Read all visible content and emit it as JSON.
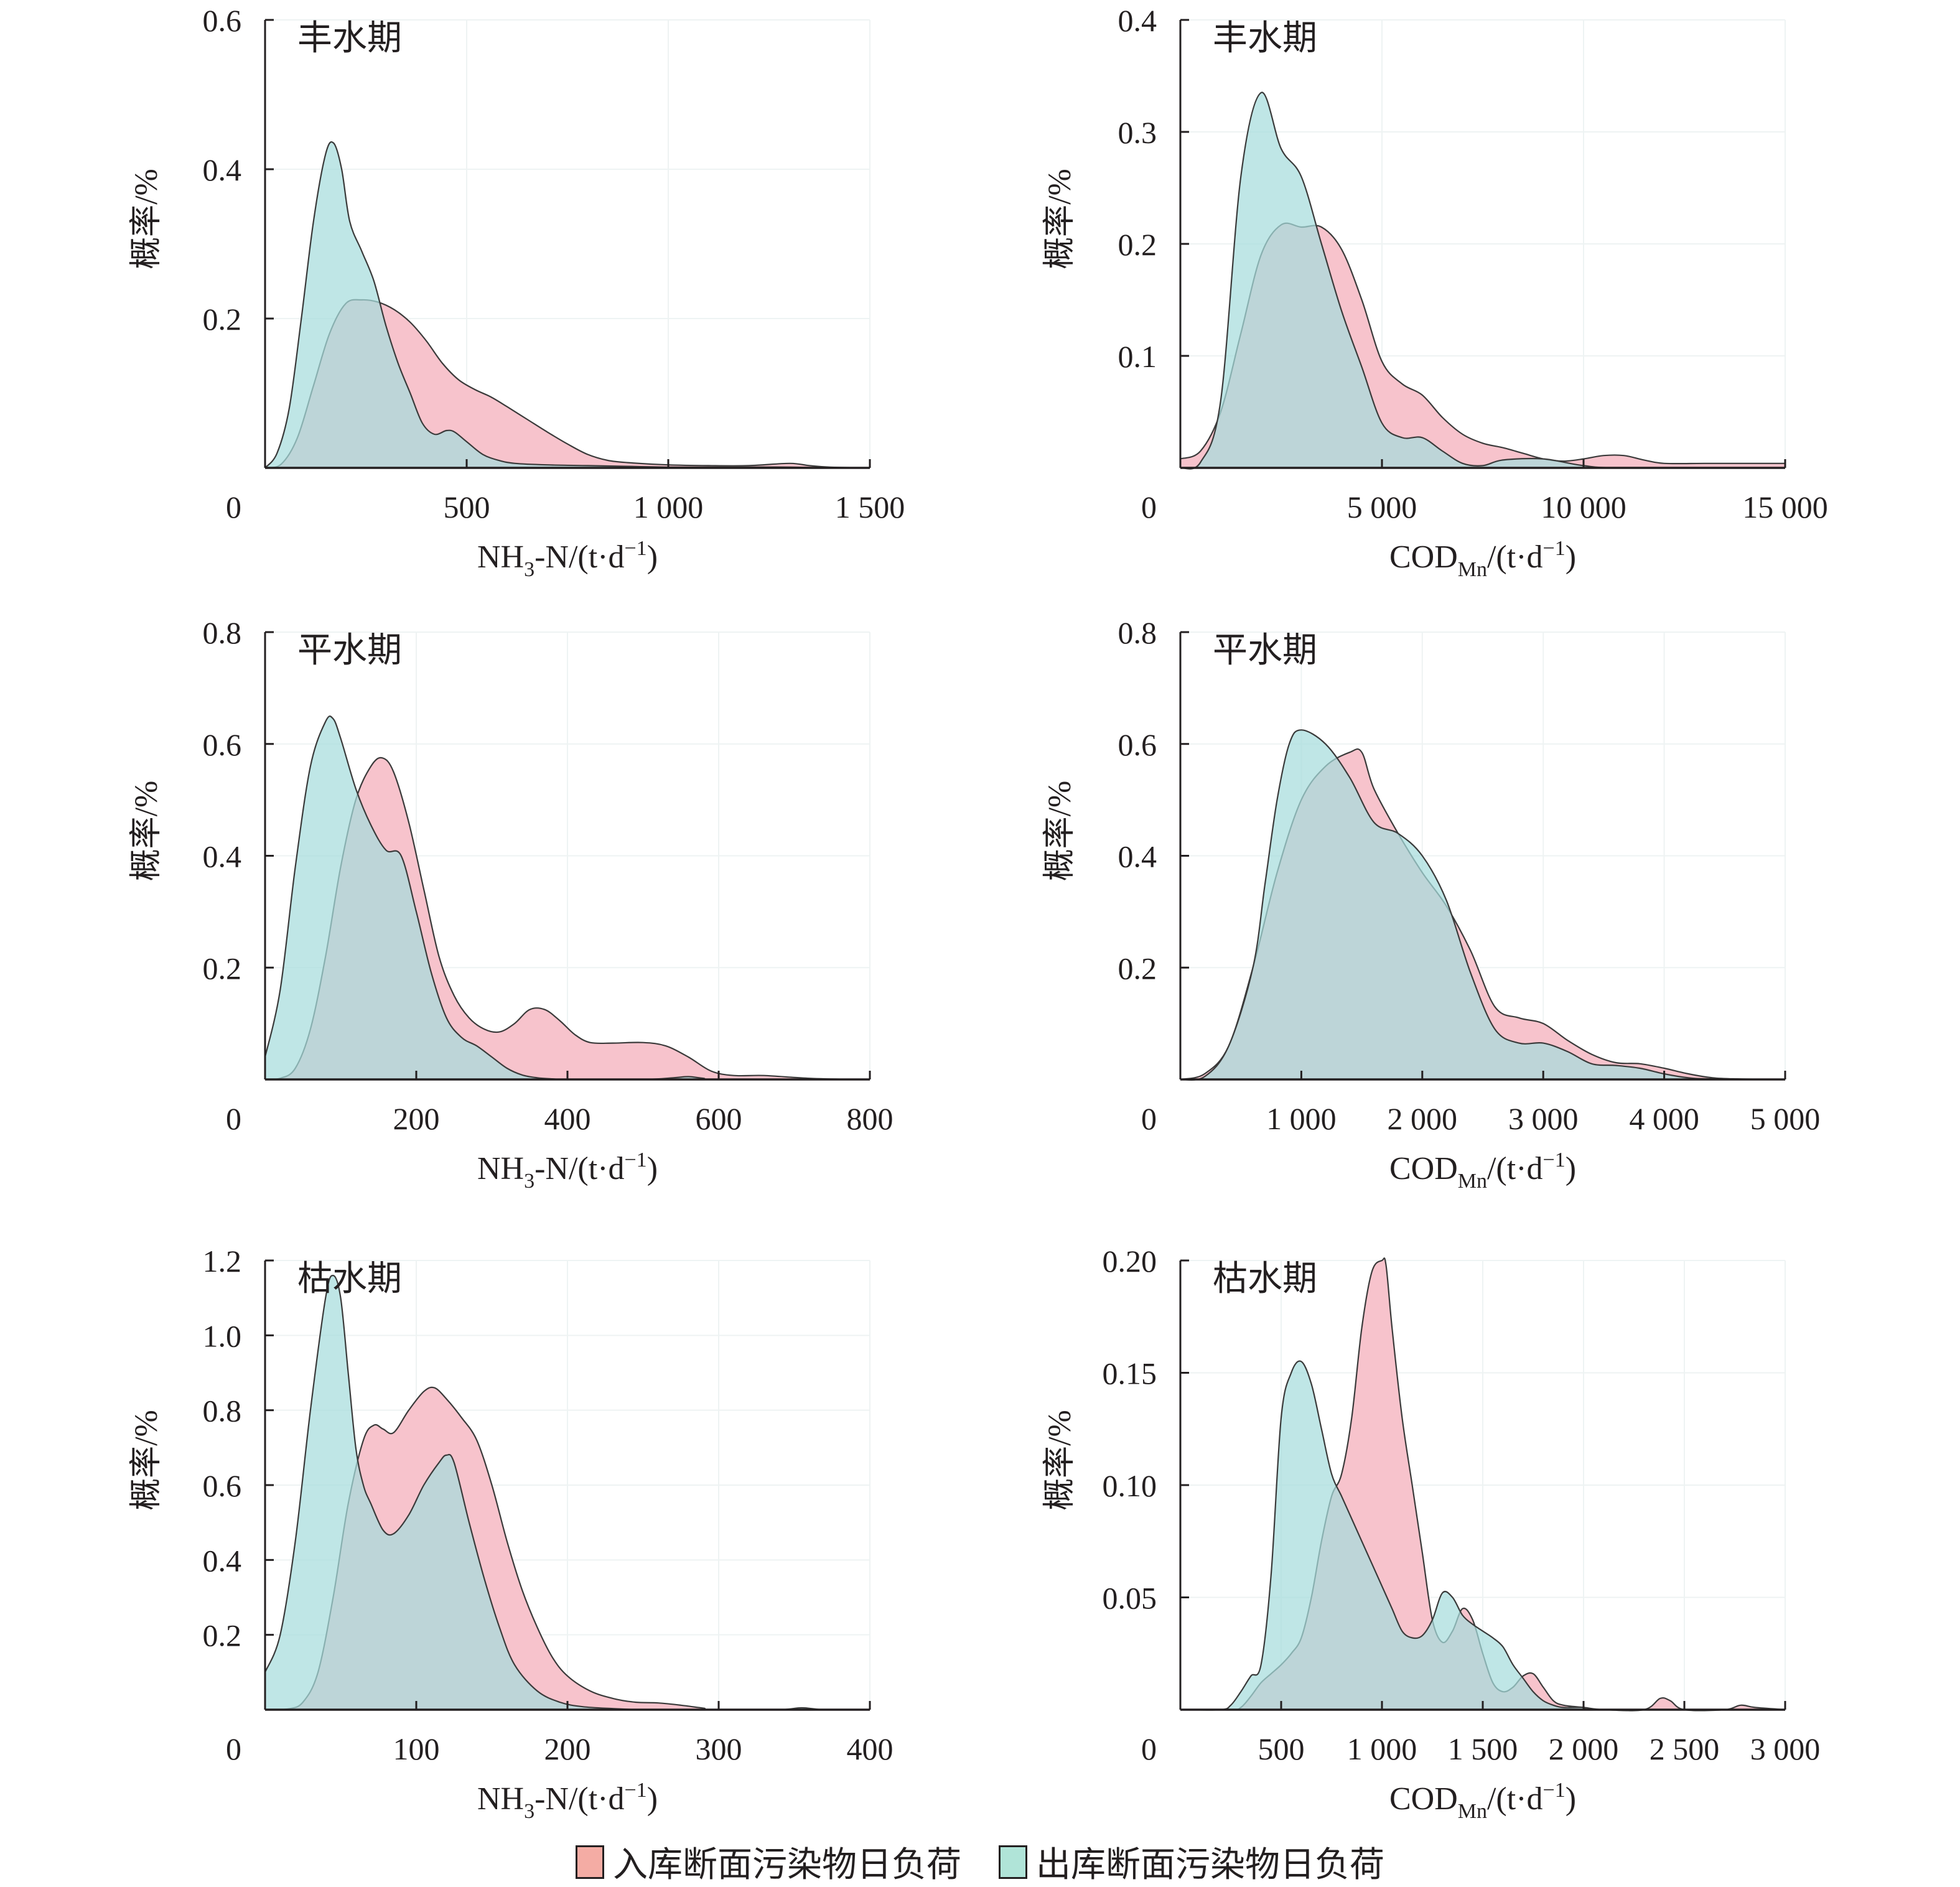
{
  "colors": {
    "inflow_fill": "#f7c3cc",
    "outflow_fill": "#a6dcdc",
    "inflow_swatch": "#f4aca4",
    "outflow_swatch": "#b0e4d8",
    "line": "#3a3a3a",
    "axis": "#231f20"
  },
  "legend": [
    {
      "label": "入库断面污染物日负荷",
      "key": "inflow"
    },
    {
      "label": "出库断面污染物日负荷",
      "key": "outflow"
    }
  ],
  "chart_data": [
    {
      "type": "area",
      "id": "nh3-wet",
      "period": "丰水期",
      "xlabel": "NH3-N/(t·d-1)",
      "xlabel_main": "NH",
      "xlabel_sub": "3",
      "xlabel_rest": "-N/(t·d",
      "xlabel_sup": "−1",
      "xlabel_end": ")",
      "ylabel": "概率/%",
      "xlim": [
        0,
        1500
      ],
      "ylim": [
        0,
        0.6
      ],
      "xticks": [
        0,
        500,
        1000,
        1500
      ],
      "xtick_labels": [
        "0",
        "500",
        "1 000",
        "1 500"
      ],
      "yticks": [
        0.2,
        0.4,
        0.6
      ],
      "ytick_labels": [
        "0.2",
        "0.4",
        "0.6"
      ],
      "series": [
        {
          "name": "入库断面污染物日负荷",
          "key": "inflow",
          "x": [
            0,
            40,
            80,
            120,
            160,
            200,
            240,
            280,
            320,
            360,
            400,
            440,
            480,
            520,
            560,
            600,
            650,
            700,
            750,
            800,
            850,
            900,
            1000,
            1100,
            1200,
            1300,
            1350,
            1400,
            1500
          ],
          "y": [
            0,
            0.005,
            0.04,
            0.11,
            0.18,
            0.22,
            0.225,
            0.222,
            0.212,
            0.195,
            0.17,
            0.14,
            0.118,
            0.105,
            0.095,
            0.082,
            0.065,
            0.048,
            0.032,
            0.018,
            0.01,
            0.007,
            0.004,
            0.003,
            0.003,
            0.006,
            0.003,
            0.001,
            0
          ]
        },
        {
          "name": "出库断面污染物日负荷",
          "key": "outflow",
          "x": [
            0,
            30,
            60,
            90,
            120,
            150,
            170,
            190,
            210,
            240,
            270,
            300,
            330,
            360,
            390,
            420,
            450,
            470,
            500,
            540,
            580,
            620,
            700,
            800,
            900,
            1000,
            1100,
            1200,
            1300,
            1400,
            1500
          ],
          "y": [
            0,
            0.02,
            0.08,
            0.2,
            0.33,
            0.42,
            0.435,
            0.4,
            0.33,
            0.29,
            0.25,
            0.19,
            0.14,
            0.1,
            0.06,
            0.045,
            0.05,
            0.048,
            0.035,
            0.018,
            0.01,
            0.006,
            0.004,
            0.003,
            0.002,
            0.001,
            0.001,
            0.001,
            0.001,
            0,
            0
          ]
        }
      ]
    },
    {
      "type": "area",
      "id": "cod-wet",
      "period": "丰水期",
      "xlabel": "CODMn/(t·d-1)",
      "xlabel_main": "COD",
      "xlabel_sub": "Mn",
      "xlabel_rest": "/(t·d",
      "xlabel_sup": "−1",
      "xlabel_end": ")",
      "ylabel": "概率/%",
      "xlim": [
        0,
        15000
      ],
      "ylim": [
        0,
        0.4
      ],
      "xticks": [
        0,
        5000,
        10000,
        15000
      ],
      "xtick_labels": [
        "0",
        "5 000",
        "10 000",
        "15 000"
      ],
      "yticks": [
        0.1,
        0.2,
        0.3,
        0.4
      ],
      "ytick_labels": [
        "0.1",
        "0.2",
        "0.3",
        "0.4"
      ],
      "series": [
        {
          "name": "入库断面污染物日负荷",
          "key": "inflow",
          "x": [
            0,
            500,
            1000,
            1500,
            2000,
            2500,
            3000,
            3500,
            4000,
            4500,
            5000,
            5500,
            6000,
            6500,
            7000,
            7500,
            8000,
            8500,
            9000,
            9500,
            10000,
            10500,
            11000,
            11500,
            12000,
            13000,
            14000,
            15000
          ],
          "y": [
            0.008,
            0.015,
            0.05,
            0.12,
            0.19,
            0.217,
            0.215,
            0.215,
            0.195,
            0.15,
            0.095,
            0.075,
            0.065,
            0.045,
            0.03,
            0.022,
            0.018,
            0.013,
            0.008,
            0.006,
            0.008,
            0.011,
            0.011,
            0.007,
            0.004,
            0.004,
            0.004,
            0.004
          ]
        },
        {
          "name": "出库断面污染物日负荷",
          "key": "outflow",
          "x": [
            0,
            500,
            1000,
            1500,
            2000,
            2500,
            3000,
            3500,
            4000,
            4500,
            5000,
            5500,
            6000,
            6500,
            7000,
            7500,
            8000,
            9000,
            10000,
            11000,
            15000
          ],
          "y": [
            0,
            0.005,
            0.06,
            0.26,
            0.335,
            0.285,
            0.26,
            0.2,
            0.14,
            0.09,
            0.04,
            0.027,
            0.027,
            0.015,
            0.004,
            0.002,
            0.007,
            0.008,
            0.002,
            0,
            0
          ]
        }
      ]
    },
    {
      "type": "area",
      "id": "nh3-normal",
      "period": "平水期",
      "xlabel": "NH3-N/(t·d-1)",
      "xlabel_main": "NH",
      "xlabel_sub": "3",
      "xlabel_rest": "-N/(t·d",
      "xlabel_sup": "−1",
      "xlabel_end": ")",
      "ylabel": "概率/%",
      "xlim": [
        0,
        800
      ],
      "ylim": [
        0,
        0.8
      ],
      "xticks": [
        0,
        200,
        400,
        600,
        800
      ],
      "xtick_labels": [
        "0",
        "200",
        "400",
        "600",
        "800"
      ],
      "yticks": [
        0.2,
        0.4,
        0.6,
        0.8
      ],
      "ytick_labels": [
        "0.2",
        "0.4",
        "0.6",
        "0.8"
      ],
      "series": [
        {
          "name": "入库断面污染物日负荷",
          "key": "inflow",
          "x": [
            0,
            20,
            40,
            60,
            80,
            100,
            120,
            140,
            155,
            170,
            190,
            210,
            230,
            250,
            270,
            290,
            310,
            330,
            350,
            370,
            390,
            410,
            430,
            460,
            500,
            530,
            560,
            590,
            620,
            660,
            720,
            780,
            800
          ],
          "y": [
            0,
            0.002,
            0.02,
            0.09,
            0.22,
            0.38,
            0.5,
            0.56,
            0.575,
            0.55,
            0.46,
            0.34,
            0.22,
            0.15,
            0.11,
            0.09,
            0.085,
            0.1,
            0.125,
            0.125,
            0.105,
            0.08,
            0.066,
            0.065,
            0.066,
            0.06,
            0.04,
            0.015,
            0.007,
            0.007,
            0.002,
            0,
            0
          ]
        },
        {
          "name": "出库断面污染物日负荷",
          "key": "outflow",
          "x": [
            0,
            20,
            40,
            60,
            80,
            90,
            100,
            120,
            140,
            160,
            180,
            200,
            220,
            240,
            260,
            280,
            300,
            320,
            340,
            360,
            380,
            400,
            500,
            540,
            560,
            580,
            600,
            800
          ],
          "y": [
            0.04,
            0.16,
            0.38,
            0.56,
            0.64,
            0.645,
            0.61,
            0.52,
            0.455,
            0.41,
            0.4,
            0.3,
            0.19,
            0.11,
            0.075,
            0.06,
            0.04,
            0.02,
            0.008,
            0.003,
            0.001,
            0,
            0,
            0.003,
            0.005,
            0.002,
            0,
            0
          ]
        }
      ]
    },
    {
      "type": "area",
      "id": "cod-normal",
      "period": "平水期",
      "xlabel": "CODMn/(t·d-1)",
      "xlabel_main": "COD",
      "xlabel_sub": "Mn",
      "xlabel_rest": "/(t·d",
      "xlabel_sup": "−1",
      "xlabel_end": ")",
      "ylabel": "概率/%",
      "xlim": [
        0,
        5000
      ],
      "ylim": [
        0,
        0.8
      ],
      "xticks": [
        0,
        1000,
        2000,
        3000,
        4000,
        5000
      ],
      "xtick_labels": [
        "0",
        "1 000",
        "2 000",
        "3 000",
        "4 000",
        "5 000"
      ],
      "yticks": [
        0.2,
        0.4,
        0.6,
        0.8
      ],
      "ytick_labels": [
        "0.2",
        "0.4",
        "0.6",
        "0.8"
      ],
      "series": [
        {
          "name": "入库断面污染物日负荷",
          "key": "inflow",
          "x": [
            0,
            200,
            400,
            600,
            800,
            1000,
            1200,
            1400,
            1500,
            1600,
            1800,
            2000,
            2200,
            2400,
            2600,
            2800,
            3000,
            3200,
            3400,
            3600,
            3800,
            4000,
            4200,
            4400,
            4600,
            5000
          ],
          "y": [
            0,
            0.01,
            0.06,
            0.2,
            0.37,
            0.5,
            0.56,
            0.585,
            0.585,
            0.52,
            0.44,
            0.37,
            0.31,
            0.23,
            0.13,
            0.11,
            0.1,
            0.07,
            0.045,
            0.03,
            0.028,
            0.02,
            0.01,
            0.003,
            0.001,
            0
          ]
        },
        {
          "name": "出库断面污染物日负荷",
          "key": "outflow",
          "x": [
            0,
            200,
            400,
            600,
            700,
            800,
            900,
            1000,
            1200,
            1400,
            1600,
            1800,
            2000,
            2200,
            2400,
            2600,
            2800,
            3000,
            3200,
            3400,
            3600,
            3800,
            4000,
            4200,
            4400,
            5000
          ],
          "y": [
            0,
            0.005,
            0.06,
            0.2,
            0.35,
            0.5,
            0.6,
            0.625,
            0.6,
            0.54,
            0.46,
            0.44,
            0.4,
            0.32,
            0.19,
            0.09,
            0.065,
            0.065,
            0.05,
            0.028,
            0.025,
            0.02,
            0.01,
            0.003,
            0.001,
            0
          ]
        }
      ]
    },
    {
      "type": "area",
      "id": "nh3-dry",
      "period": "枯水期",
      "xlabel": "NH3-N/(t·d-1)",
      "xlabel_main": "NH",
      "xlabel_sub": "3",
      "xlabel_rest": "-N/(t·d",
      "xlabel_sup": "−1",
      "xlabel_end": ")",
      "ylabel": "概率/%",
      "xlim": [
        0,
        400
      ],
      "ylim": [
        0,
        1.2
      ],
      "xticks": [
        0,
        100,
        200,
        300,
        400
      ],
      "xtick_labels": [
        "0",
        "100",
        "200",
        "300",
        "400"
      ],
      "yticks": [
        0.2,
        0.4,
        0.6,
        0.8,
        1.0,
        1.2
      ],
      "ytick_labels": [
        "0.2",
        "0.4",
        "0.6",
        "0.8",
        "1.0",
        "1.2"
      ],
      "series": [
        {
          "name": "入库断面污染物日负荷",
          "key": "inflow",
          "x": [
            0,
            15,
            25,
            35,
            45,
            55,
            65,
            72,
            78,
            85,
            95,
            105,
            112,
            120,
            130,
            140,
            150,
            160,
            170,
            180,
            190,
            200,
            215,
            230,
            245,
            260,
            275,
            290,
            300,
            400
          ],
          "y": [
            0,
            0.002,
            0.02,
            0.1,
            0.3,
            0.55,
            0.72,
            0.76,
            0.75,
            0.74,
            0.8,
            0.85,
            0.86,
            0.83,
            0.78,
            0.72,
            0.6,
            0.45,
            0.32,
            0.22,
            0.14,
            0.09,
            0.05,
            0.03,
            0.02,
            0.018,
            0.012,
            0.004,
            0,
            0
          ]
        },
        {
          "name": "出库断面污染物日负荷",
          "key": "outflow",
          "x": [
            0,
            10,
            20,
            30,
            40,
            45,
            50,
            55,
            60,
            65,
            70,
            78,
            85,
            95,
            105,
            115,
            120,
            125,
            135,
            145,
            155,
            165,
            180,
            195,
            210,
            230,
            250,
            300,
            340,
            355,
            370,
            400
          ],
          "y": [
            0.1,
            0.2,
            0.45,
            0.8,
            1.1,
            1.16,
            1.1,
            0.9,
            0.7,
            0.6,
            0.55,
            0.48,
            0.47,
            0.52,
            0.6,
            0.66,
            0.68,
            0.66,
            0.5,
            0.35,
            0.22,
            0.12,
            0.05,
            0.02,
            0.008,
            0.003,
            0,
            0,
            0,
            0.005,
            0,
            0
          ]
        }
      ]
    },
    {
      "type": "area",
      "id": "cod-dry",
      "period": "枯水期",
      "xlabel": "CODMn/(t·d-1)",
      "xlabel_main": "COD",
      "xlabel_sub": "Mn",
      "xlabel_rest": "/(t·d",
      "xlabel_sup": "−1",
      "xlabel_end": ")",
      "ylabel": "概率/%",
      "xlim": [
        0,
        3000
      ],
      "ylim": [
        0,
        0.2
      ],
      "xticks": [
        0,
        500,
        1000,
        1500,
        2000,
        2500,
        3000
      ],
      "xtick_labels": [
        "0",
        "500",
        "1 000",
        "1 500",
        "2 000",
        "2 500",
        "3 000"
      ],
      "yticks": [
        0.05,
        0.1,
        0.15,
        0.2
      ],
      "ytick_labels": [
        "0.05",
        "0.10",
        "0.15",
        "0.20"
      ],
      "series": [
        {
          "name": "入库断面污染物日负荷",
          "key": "inflow",
          "x": [
            0,
            250,
            300,
            350,
            400,
            450,
            500,
            550,
            600,
            650,
            700,
            750,
            800,
            850,
            900,
            950,
            1000,
            1020,
            1050,
            1100,
            1150,
            1200,
            1250,
            1300,
            1350,
            1400,
            1450,
            1500,
            1550,
            1600,
            1650,
            1700,
            1750,
            1800,
            1850,
            1900,
            2000,
            2100,
            2300,
            2380,
            2430,
            2500,
            2700,
            2780,
            2850,
            3000
          ],
          "y": [
            0,
            0,
            0.001,
            0.006,
            0.012,
            0.016,
            0.02,
            0.025,
            0.032,
            0.05,
            0.075,
            0.095,
            0.105,
            0.13,
            0.17,
            0.195,
            0.2,
            0.198,
            0.17,
            0.13,
            0.1,
            0.07,
            0.04,
            0.03,
            0.035,
            0.045,
            0.04,
            0.025,
            0.012,
            0.008,
            0.01,
            0.015,
            0.016,
            0.01,
            0.004,
            0.002,
            0.001,
            0,
            0,
            0.005,
            0.004,
            0,
            0,
            0.002,
            0.001,
            0
          ]
        },
        {
          "name": "出库断面污染物日负荷",
          "key": "outflow",
          "x": [
            0,
            200,
            250,
            300,
            350,
            400,
            450,
            500,
            550,
            600,
            650,
            700,
            750,
            800,
            850,
            900,
            950,
            1000,
            1050,
            1100,
            1150,
            1200,
            1250,
            1300,
            1350,
            1400,
            1450,
            1500,
            1550,
            1600,
            1650,
            1700,
            1750,
            1800,
            1850,
            1900,
            2000,
            2100,
            3000
          ],
          "y": [
            0,
            0,
            0.002,
            0.008,
            0.015,
            0.02,
            0.06,
            0.13,
            0.15,
            0.155,
            0.145,
            0.125,
            0.105,
            0.095,
            0.085,
            0.075,
            0.065,
            0.055,
            0.045,
            0.035,
            0.032,
            0.033,
            0.04,
            0.052,
            0.05,
            0.042,
            0.038,
            0.035,
            0.032,
            0.028,
            0.02,
            0.014,
            0.008,
            0.004,
            0.002,
            0.001,
            0.001,
            0,
            0
          ]
        }
      ]
    }
  ]
}
